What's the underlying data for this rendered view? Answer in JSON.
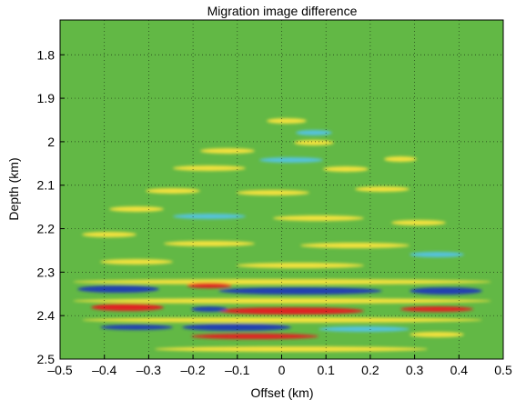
{
  "chart_data": {
    "type": "image",
    "title": "Migration image difference",
    "xlabel": "Offset (km)",
    "ylabel": "Depth (km)",
    "xlim": [
      -0.5,
      0.5
    ],
    "xticks": [
      {
        "value": -0.5,
        "label": "–0.5"
      },
      {
        "value": -0.4,
        "label": "–0.4"
      },
      {
        "value": -0.3,
        "label": "–0.3"
      },
      {
        "value": -0.2,
        "label": "–0.2"
      },
      {
        "value": -0.1,
        "label": "–0.1"
      },
      0,
      0.1,
      0.2,
      0.3,
      0.4,
      0.5
    ],
    "ylim": [
      1.72,
      2.5
    ],
    "yticks": [
      1.8,
      1.9,
      2,
      2.1,
      2.2,
      2.3,
      2.4,
      2.5
    ],
    "y_inverted": true,
    "grid": true,
    "background_color": "#62b845"
  }
}
